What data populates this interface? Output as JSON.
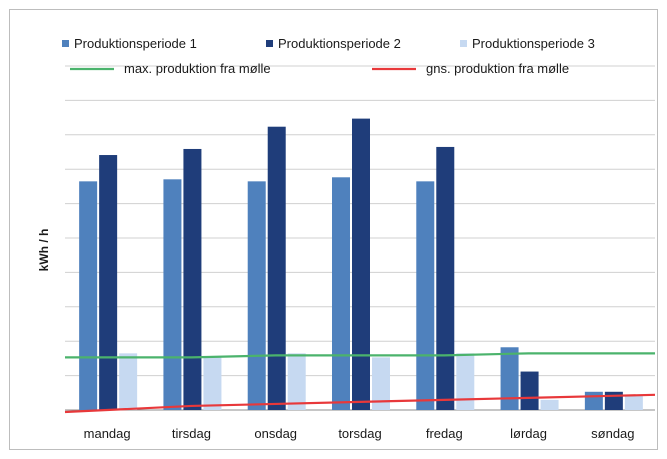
{
  "chart_data": {
    "type": "bar",
    "title": "",
    "xlabel": "",
    "ylabel": "kWh / h",
    "ylim": [
      0,
      17
    ],
    "grid": true,
    "legend_position": "top",
    "categories": [
      "mandag",
      "tirsdag",
      "onsdag",
      "torsdag",
      "fredag",
      "lørdag",
      "søndag"
    ],
    "series": [
      {
        "name": "Produktionsperiode 1",
        "color": "#4f81bd",
        "values": [
          11.3,
          11.4,
          11.3,
          11.5,
          11.3,
          3.1,
          0.9
        ]
      },
      {
        "name": "Produktionsperiode 2",
        "color": "#1f3d7a",
        "values": [
          12.6,
          12.9,
          14.0,
          14.4,
          13.0,
          1.9,
          0.9
        ]
      },
      {
        "name": "Produktionsperiode 3",
        "color": "#c6d9f1",
        "values": [
          2.8,
          2.6,
          2.8,
          2.6,
          2.8,
          0.5,
          0.7
        ]
      }
    ],
    "lines": [
      {
        "name": "max. produktion fra mølle",
        "color": "#4bb36c",
        "values": [
          2.6,
          2.6,
          2.7,
          2.7,
          2.7,
          2.8,
          2.8
        ]
      },
      {
        "name": "gns. produktion fra mølle",
        "color": "#e8383a",
        "values": [
          0.0,
          0.2,
          0.3,
          0.4,
          0.5,
          0.6,
          0.7
        ]
      }
    ]
  }
}
